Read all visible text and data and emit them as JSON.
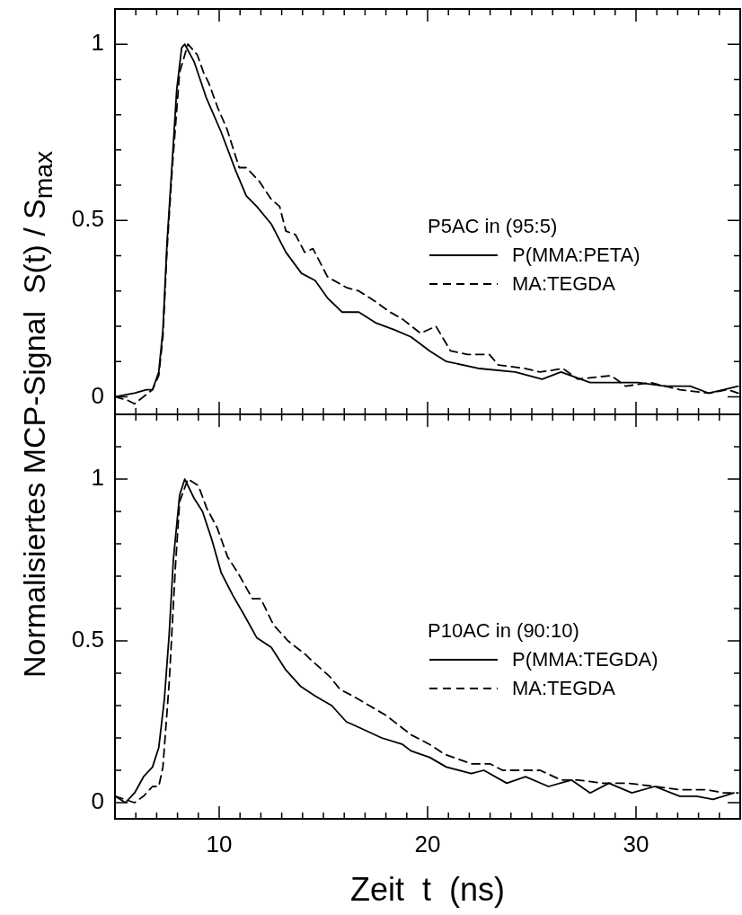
{
  "chart_data": [
    {
      "type": "line",
      "ylabel": "Normalisiertes MCP-Signal  S(t) / S$_{max}$",
      "legend_title": "P5AC in (95:5)",
      "legend": "right",
      "tick_labels": "y",
      "grid": false,
      "marker": "none",
      "xlim": [
        5,
        35
      ],
      "xticks": [
        {
          "value": 5,
          "label": null
        },
        {
          "value": 6,
          "label": null
        },
        {
          "value": 7,
          "label": null
        },
        {
          "value": 8,
          "label": null
        },
        {
          "value": 9,
          "label": null
        },
        10,
        {
          "value": 11,
          "label": null
        },
        {
          "value": 12,
          "label": null
        },
        {
          "value": 13,
          "label": null
        },
        {
          "value": 14,
          "label": null
        },
        {
          "value": 15,
          "label": null
        },
        {
          "value": 16,
          "label": null
        },
        {
          "value": 17,
          "label": null
        },
        {
          "value": 18,
          "label": null
        },
        {
          "value": 19,
          "label": null
        },
        20,
        {
          "value": 21,
          "label": null
        },
        {
          "value": 22,
          "label": null
        },
        {
          "value": 23,
          "label": null
        },
        {
          "value": 24,
          "label": null
        },
        {
          "value": 25,
          "label": null
        },
        {
          "value": 26,
          "label": null
        },
        {
          "value": 27,
          "label": null
        },
        {
          "value": 28,
          "label": null
        },
        {
          "value": 29,
          "label": null
        },
        30,
        {
          "value": 31,
          "label": null
        },
        {
          "value": 32,
          "label": null
        },
        {
          "value": 33,
          "label": null
        },
        {
          "value": 34,
          "label": null
        },
        {
          "value": 35,
          "label": null
        }
      ],
      "ylim": [
        -0.05,
        1.1
      ],
      "yticks": [
        0,
        {
          "value": 0.1,
          "label": null
        },
        {
          "value": 0.2,
          "label": null
        },
        {
          "value": 0.3,
          "label": null
        },
        {
          "value": 0.4,
          "label": null
        },
        0.5,
        {
          "value": 0.6,
          "label": null
        },
        {
          "value": 0.7,
          "label": null
        },
        {
          "value": 0.8,
          "label": null
        },
        {
          "value": 0.9,
          "label": null
        },
        1
      ],
      "series": [
        {
          "name": "P(MMA:PETA)",
          "color": "#000000",
          "line_style": "solid",
          "x": [
            5,
            5.94,
            6.5,
            6.8,
            7.1,
            7.3,
            7.5,
            7.75,
            7.96,
            8.2,
            8.35,
            8.8,
            9.37,
            10.1,
            10.8,
            11.3,
            11.8,
            12.5,
            13.2,
            13.95,
            14.6,
            15.2,
            15.9,
            16.7,
            17.5,
            18.4,
            19.2,
            20.1,
            20.9,
            22.5,
            24.2,
            25.5,
            26.4,
            27.8,
            29.5,
            30.1,
            31.4,
            32.6,
            33.5,
            34.2,
            34.9
          ],
          "values": [
            0,
            0.01,
            0.02,
            0.02,
            0.07,
            0.19,
            0.44,
            0.67,
            0.87,
            0.99,
            1,
            0.95,
            0.85,
            0.75,
            0.64,
            0.57,
            0.54,
            0.49,
            0.41,
            0.35,
            0.33,
            0.28,
            0.24,
            0.24,
            0.21,
            0.19,
            0.17,
            0.13,
            0.1,
            0.08,
            0.07,
            0.05,
            0.07,
            0.04,
            0.04,
            0.04,
            0.03,
            0.03,
            0.01,
            0.02,
            0.03
          ]
        },
        {
          "name": "MA:TEGDA",
          "color": "#000000",
          "line_style": "dashed",
          "x": [
            5,
            5.6,
            5.94,
            6.37,
            6.8,
            7.1,
            7.3,
            7.5,
            7.75,
            8.1,
            8.5,
            8.95,
            9.25,
            9.5,
            9.93,
            10.37,
            10.96,
            11.3,
            11.94,
            12.5,
            12.9,
            13.2,
            13.66,
            14.1,
            14.5,
            15.2,
            16.1,
            16.7,
            17.5,
            18.2,
            18.8,
            19.66,
            20.4,
            21.1,
            21.9,
            22.96,
            23.4,
            24.7,
            25.4,
            26.5,
            27.2,
            28.8,
            29.5,
            30.7,
            32.1,
            33.5,
            34.4,
            34.9
          ],
          "values": [
            0,
            -0.01,
            -0.02,
            0,
            0.02,
            0.06,
            0.17,
            0.42,
            0.65,
            0.92,
            1,
            0.97,
            0.92,
            0.89,
            0.82,
            0.76,
            0.65,
            0.65,
            0.61,
            0.56,
            0.54,
            0.47,
            0.46,
            0.41,
            0.42,
            0.34,
            0.31,
            0.3,
            0.27,
            0.24,
            0.22,
            0.18,
            0.2,
            0.13,
            0.12,
            0.12,
            0.09,
            0.08,
            0.07,
            0.08,
            0.05,
            0.06,
            0.03,
            0.04,
            0.02,
            0.01,
            0.02,
            0.01
          ]
        }
      ]
    },
    {
      "type": "line",
      "xlabel": "Zeit  t  (ns)",
      "legend_title": "P10AC in (90:10)",
      "legend": "right",
      "grid": false,
      "marker": "none",
      "xlim": [
        5,
        35
      ],
      "xticks": [
        {
          "value": 5,
          "label": null
        },
        {
          "value": 6,
          "label": null
        },
        {
          "value": 7,
          "label": null
        },
        {
          "value": 8,
          "label": null
        },
        {
          "value": 9,
          "label": null
        },
        10,
        {
          "value": 11,
          "label": null
        },
        {
          "value": 12,
          "label": null
        },
        {
          "value": 13,
          "label": null
        },
        {
          "value": 14,
          "label": null
        },
        {
          "value": 15,
          "label": null
        },
        {
          "value": 16,
          "label": null
        },
        {
          "value": 17,
          "label": null
        },
        {
          "value": 18,
          "label": null
        },
        {
          "value": 19,
          "label": null
        },
        20,
        {
          "value": 21,
          "label": null
        },
        {
          "value": 22,
          "label": null
        },
        {
          "value": 23,
          "label": null
        },
        {
          "value": 24,
          "label": null
        },
        {
          "value": 25,
          "label": null
        },
        {
          "value": 26,
          "label": null
        },
        {
          "value": 27,
          "label": null
        },
        {
          "value": 28,
          "label": null
        },
        {
          "value": 29,
          "label": null
        },
        30,
        {
          "value": 31,
          "label": null
        },
        {
          "value": 32,
          "label": null
        },
        {
          "value": 33,
          "label": null
        },
        {
          "value": 34,
          "label": null
        },
        {
          "value": 35,
          "label": null
        }
      ],
      "ylim": [
        -0.05,
        1.2
      ],
      "yticks": [
        0,
        {
          "value": 0.1,
          "label": null
        },
        {
          "value": 0.2,
          "label": null
        },
        {
          "value": 0.3,
          "label": null
        },
        {
          "value": 0.4,
          "label": null
        },
        0.5,
        {
          "value": 0.6,
          "label": null
        },
        {
          "value": 0.7,
          "label": null
        },
        {
          "value": 0.8,
          "label": null
        },
        {
          "value": 0.9,
          "label": null
        },
        1,
        {
          "value": 1.1,
          "label": null
        }
      ],
      "series": [
        {
          "name": "P(MMA:TEGDA)",
          "color": "#000000",
          "line_style": "solid",
          "x": [
            5,
            5.5,
            5.94,
            6.37,
            6.8,
            7.1,
            7.37,
            7.6,
            7.8,
            8.1,
            8.35,
            8.8,
            9.2,
            9.66,
            10.1,
            10.66,
            11.2,
            11.8,
            12.5,
            13.2,
            13.9,
            14.6,
            15.4,
            16.1,
            16.8,
            17.8,
            18.8,
            19.2,
            20.1,
            20.9,
            22.1,
            22.7,
            23.8,
            24.7,
            25.8,
            26.9,
            27.8,
            28.7,
            29.8,
            30.9,
            32.1,
            32.9,
            33.7,
            34.7
          ],
          "values": [
            0.02,
            0,
            0.03,
            0.08,
            0.11,
            0.17,
            0.32,
            0.52,
            0.75,
            0.95,
            1,
            0.94,
            0.9,
            0.81,
            0.71,
            0.64,
            0.58,
            0.51,
            0.48,
            0.41,
            0.36,
            0.33,
            0.3,
            0.25,
            0.23,
            0.2,
            0.18,
            0.16,
            0.14,
            0.11,
            0.09,
            0.1,
            0.06,
            0.08,
            0.05,
            0.07,
            0.03,
            0.06,
            0.03,
            0.05,
            0.02,
            0.02,
            0.01,
            0.03
          ]
        },
        {
          "name": "MA:TEGDA",
          "color": "#000000",
          "line_style": "dashed",
          "x": [
            5,
            5.94,
            6.37,
            6.8,
            7.1,
            7.3,
            7.6,
            7.9,
            8.1,
            8.5,
            9.0,
            9.4,
            9.9,
            10.4,
            10.9,
            11.6,
            12.0,
            12.6,
            13.3,
            14.1,
            14.6,
            15.3,
            15.8,
            16.4,
            17.2,
            18.0,
            18.6,
            19.2,
            20.1,
            20.8,
            22.1,
            23.0,
            23.6,
            24.7,
            25.4,
            26.4,
            27.2,
            28.4,
            29.6,
            30.9,
            32.1,
            33.4,
            34.2,
            34.9
          ],
          "values": [
            0.02,
            0,
            0.02,
            0.05,
            0.05,
            0.11,
            0.37,
            0.73,
            0.93,
            1,
            0.98,
            0.91,
            0.85,
            0.76,
            0.71,
            0.63,
            0.63,
            0.55,
            0.5,
            0.46,
            0.43,
            0.39,
            0.35,
            0.33,
            0.3,
            0.27,
            0.24,
            0.21,
            0.18,
            0.15,
            0.12,
            0.12,
            0.1,
            0.1,
            0.1,
            0.07,
            0.07,
            0.06,
            0.06,
            0.05,
            0.04,
            0.04,
            0.03,
            0.03
          ]
        }
      ]
    }
  ]
}
